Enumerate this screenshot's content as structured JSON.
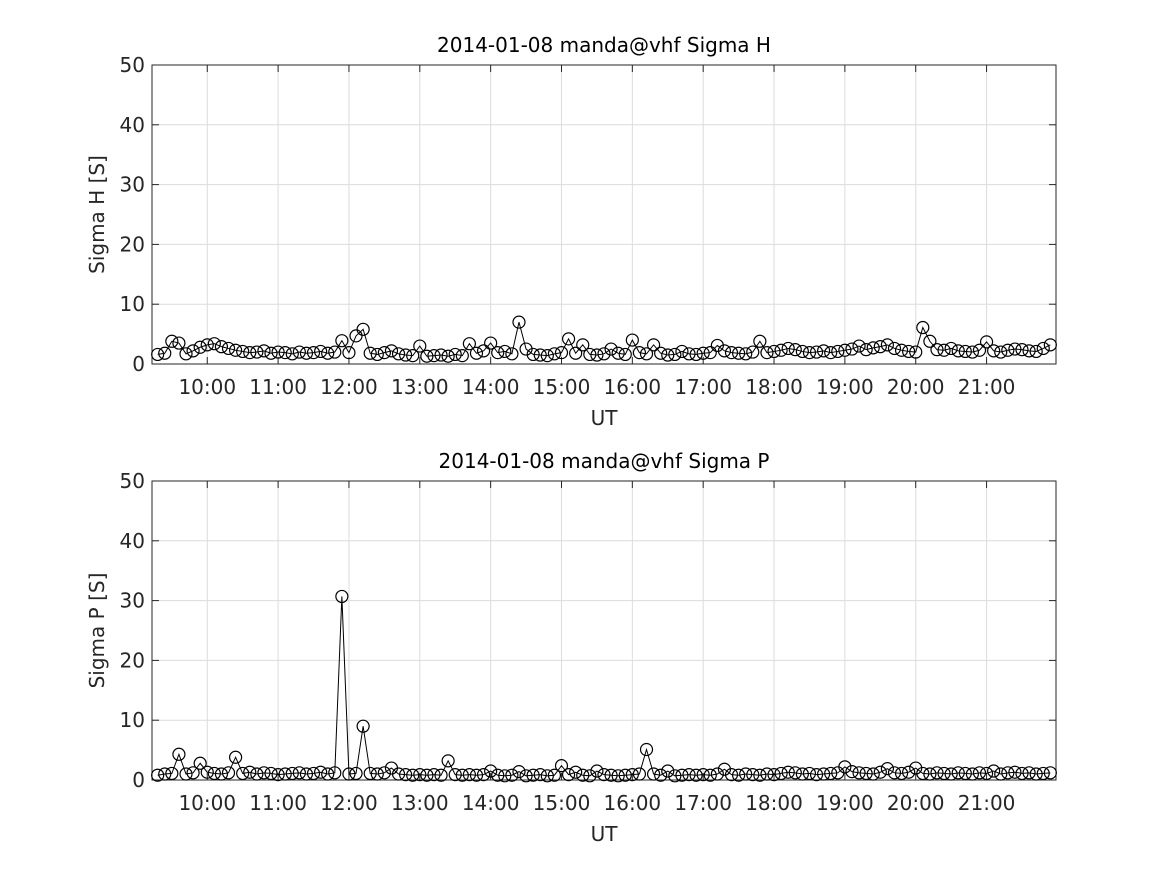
{
  "chart_data": [
    {
      "type": "line",
      "title": "2014-01-08  manda@vhf Sigma H",
      "xlabel": "UT",
      "ylabel": "Sigma H [S]",
      "color": "#000000",
      "marker": "circle",
      "grid": true,
      "xlim": [
        9.22,
        21.98
      ],
      "ylim": [
        0,
        50
      ],
      "xticks": [
        {
          "value": 10,
          "label": "10:00"
        },
        {
          "value": 11,
          "label": "11:00"
        },
        {
          "value": 12,
          "label": "12:00"
        },
        {
          "value": 13,
          "label": "13:00"
        },
        {
          "value": 14,
          "label": "14:00"
        },
        {
          "value": 15,
          "label": "15:00"
        },
        {
          "value": 16,
          "label": "16:00"
        },
        {
          "value": 17,
          "label": "17:00"
        },
        {
          "value": 18,
          "label": "18:00"
        },
        {
          "value": 19,
          "label": "19:00"
        },
        {
          "value": 20,
          "label": "20:00"
        },
        {
          "value": 21,
          "label": "21:00"
        }
      ],
      "yticks": [
        0,
        10,
        20,
        30,
        40,
        50
      ],
      "x": [
        9.3,
        9.4,
        9.5,
        9.6,
        9.7,
        9.8,
        9.9,
        10,
        10.1,
        10.2,
        10.3,
        10.4,
        10.5,
        10.6,
        10.7,
        10.8,
        10.9,
        11,
        11.1,
        11.2,
        11.3,
        11.4,
        11.5,
        11.6,
        11.7,
        11.8,
        11.9,
        12,
        12.1,
        12.2,
        12.3,
        12.4,
        12.5,
        12.6,
        12.7,
        12.8,
        12.9,
        13,
        13.1,
        13.2,
        13.3,
        13.4,
        13.5,
        13.6,
        13.7,
        13.8,
        13.9,
        14,
        14.1,
        14.2,
        14.3,
        14.4,
        14.5,
        14.6,
        14.7,
        14.8,
        14.9,
        15,
        15.1,
        15.2,
        15.3,
        15.4,
        15.5,
        15.6,
        15.7,
        15.8,
        15.9,
        16,
        16.1,
        16.2,
        16.3,
        16.4,
        16.5,
        16.6,
        16.7,
        16.8,
        16.9,
        17,
        17.1,
        17.2,
        17.3,
        17.4,
        17.5,
        17.6,
        17.7,
        17.8,
        17.9,
        18,
        18.1,
        18.2,
        18.3,
        18.4,
        18.5,
        18.6,
        18.7,
        18.8,
        18.9,
        19,
        19.1,
        19.2,
        19.3,
        19.4,
        19.5,
        19.6,
        19.7,
        19.8,
        19.9,
        20,
        20.1,
        20.2,
        20.3,
        20.4,
        20.5,
        20.6,
        20.7,
        20.8,
        20.9,
        21,
        21.1,
        21.2,
        21.3,
        21.4,
        21.5,
        21.6,
        21.7,
        21.8,
        21.9
      ],
      "values": [
        1.6,
        1.8,
        3.8,
        3.5,
        1.7,
        2.2,
        2.8,
        3.2,
        3.4,
        2.9,
        2.6,
        2.3,
        2.1,
        1.9,
        2.0,
        2.2,
        1.8,
        2.0,
        1.9,
        1.7,
        2.0,
        1.8,
        1.9,
        2.1,
        1.8,
        2.0,
        3.9,
        1.9,
        4.7,
        5.8,
        1.8,
        1.6,
        1.9,
        2.2,
        1.7,
        1.5,
        1.4,
        3.0,
        1.3,
        1.4,
        1.5,
        1.3,
        1.6,
        1.4,
        3.4,
        1.8,
        2.2,
        3.5,
        1.9,
        2.1,
        1.7,
        7.0,
        2.5,
        1.6,
        1.5,
        1.4,
        1.7,
        1.9,
        4.2,
        1.8,
        3.2,
        1.6,
        1.5,
        1.7,
        2.5,
        1.8,
        1.6,
        4.0,
        1.9,
        1.7,
        3.2,
        1.8,
        1.5,
        1.6,
        2.1,
        1.7,
        1.6,
        1.8,
        1.9,
        3.1,
        2.2,
        1.9,
        1.8,
        1.7,
        2.0,
        3.8,
        1.9,
        2.1,
        2.3,
        2.6,
        2.4,
        2.1,
        1.9,
        2.0,
        2.2,
        1.9,
        2.1,
        2.3,
        2.5,
        3.0,
        2.4,
        2.7,
        2.9,
        3.2,
        2.6,
        2.3,
        2.1,
        2.0,
        6.1,
        3.8,
        2.4,
        2.3,
        2.6,
        2.2,
        2.1,
        2.0,
        2.3,
        3.7,
        2.2,
        2.0,
        2.3,
        2.5,
        2.4,
        2.2,
        2.1,
        2.6,
        3.2
      ]
    },
    {
      "type": "line",
      "title": "2014-01-08  manda@vhf Sigma P",
      "xlabel": "UT",
      "ylabel": "Sigma P [S]",
      "color": "#000000",
      "marker": "circle",
      "grid": true,
      "xlim": [
        9.22,
        21.98
      ],
      "ylim": [
        0,
        50
      ],
      "xticks": [
        {
          "value": 10,
          "label": "10:00"
        },
        {
          "value": 11,
          "label": "11:00"
        },
        {
          "value": 12,
          "label": "12:00"
        },
        {
          "value": 13,
          "label": "13:00"
        },
        {
          "value": 14,
          "label": "14:00"
        },
        {
          "value": 15,
          "label": "15:00"
        },
        {
          "value": 16,
          "label": "16:00"
        },
        {
          "value": 17,
          "label": "17:00"
        },
        {
          "value": 18,
          "label": "18:00"
        },
        {
          "value": 19,
          "label": "19:00"
        },
        {
          "value": 20,
          "label": "20:00"
        },
        {
          "value": 21,
          "label": "21:00"
        }
      ],
      "yticks": [
        0,
        10,
        20,
        30,
        40,
        50
      ],
      "x": [
        9.3,
        9.4,
        9.5,
        9.6,
        9.7,
        9.8,
        9.9,
        10,
        10.1,
        10.2,
        10.3,
        10.4,
        10.5,
        10.6,
        10.7,
        10.8,
        10.9,
        11,
        11.1,
        11.2,
        11.3,
        11.4,
        11.5,
        11.6,
        11.7,
        11.8,
        11.9,
        12,
        12.1,
        12.2,
        12.3,
        12.4,
        12.5,
        12.6,
        12.7,
        12.8,
        12.9,
        13,
        13.1,
        13.2,
        13.3,
        13.4,
        13.5,
        13.6,
        13.7,
        13.8,
        13.9,
        14,
        14.1,
        14.2,
        14.3,
        14.4,
        14.5,
        14.6,
        14.7,
        14.8,
        14.9,
        15,
        15.1,
        15.2,
        15.3,
        15.4,
        15.5,
        15.6,
        15.7,
        15.8,
        15.9,
        16,
        16.1,
        16.2,
        16.3,
        16.4,
        16.5,
        16.6,
        16.7,
        16.8,
        16.9,
        17,
        17.1,
        17.2,
        17.3,
        17.4,
        17.5,
        17.6,
        17.7,
        17.8,
        17.9,
        18,
        18.1,
        18.2,
        18.3,
        18.4,
        18.5,
        18.6,
        18.7,
        18.8,
        18.9,
        19,
        19.1,
        19.2,
        19.3,
        19.4,
        19.5,
        19.6,
        19.7,
        19.8,
        19.9,
        20,
        20.1,
        20.2,
        20.3,
        20.4,
        20.5,
        20.6,
        20.7,
        20.8,
        20.9,
        21,
        21.1,
        21.2,
        21.3,
        21.4,
        21.5,
        21.6,
        21.7,
        21.8,
        21.9
      ],
      "values": [
        0.8,
        1.0,
        1.1,
        4.3,
        1.0,
        1.2,
        2.8,
        1.3,
        1.1,
        1.0,
        1.2,
        3.8,
        1.1,
        1.3,
        1.0,
        1.2,
        1.1,
        0.9,
        1.0,
        1.1,
        1.2,
        1.0,
        1.1,
        1.3,
        1.0,
        1.2,
        30.7,
        1.0,
        1.1,
        9.0,
        1.1,
        1.0,
        1.2,
        2.0,
        1.0,
        0.9,
        0.8,
        0.9,
        0.8,
        0.9,
        0.8,
        3.2,
        0.9,
        0.8,
        0.9,
        0.8,
        0.9,
        1.5,
        0.8,
        0.7,
        0.8,
        1.4,
        0.7,
        0.8,
        0.9,
        0.7,
        0.8,
        2.4,
        0.9,
        1.3,
        0.8,
        0.7,
        1.5,
        0.9,
        0.8,
        0.7,
        0.8,
        0.9,
        1.0,
        5.1,
        1.0,
        0.8,
        1.5,
        0.7,
        0.8,
        0.9,
        0.8,
        0.9,
        0.8,
        1.0,
        1.8,
        0.9,
        0.8,
        1.0,
        0.9,
        0.8,
        1.0,
        0.9,
        1.1,
        1.3,
        1.2,
        1.0,
        1.1,
        0.9,
        1.0,
        1.1,
        1.2,
        2.2,
        1.4,
        1.2,
        1.1,
        1.0,
        1.3,
        1.9,
        1.2,
        1.1,
        1.3,
        2.0,
        1.1,
        1.0,
        1.2,
        1.1,
        1.0,
        1.2,
        1.1,
        1.0,
        1.2,
        1.1,
        1.5,
        1.0,
        1.2,
        1.3,
        1.1,
        1.2,
        1.0,
        1.1,
        1.2
      ]
    }
  ]
}
